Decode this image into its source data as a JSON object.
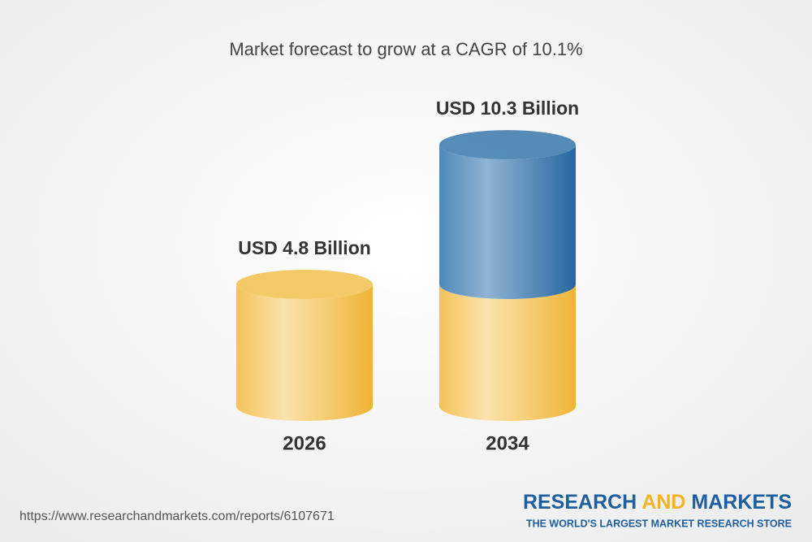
{
  "chart_data": {
    "type": "cylinder",
    "title": "Market forecast to grow at a CAGR of 10.1%",
    "categories": [
      "2026",
      "2034"
    ],
    "values": [
      4.8,
      10.3
    ],
    "value_labels": [
      "USD 4.8 Billion",
      "USD 10.3 Billion"
    ],
    "colors": {
      "base": "#f2c14e",
      "growth": "#3a78ad"
    }
  },
  "footer": {
    "url": "https://www.researchandmarkets.com/reports/6107671",
    "logo": {
      "research": "RESEARCH",
      "and": "AND",
      "markets": "MARKETS",
      "tagline": "THE WORLD'S LARGEST MARKET RESEARCH STORE"
    }
  }
}
